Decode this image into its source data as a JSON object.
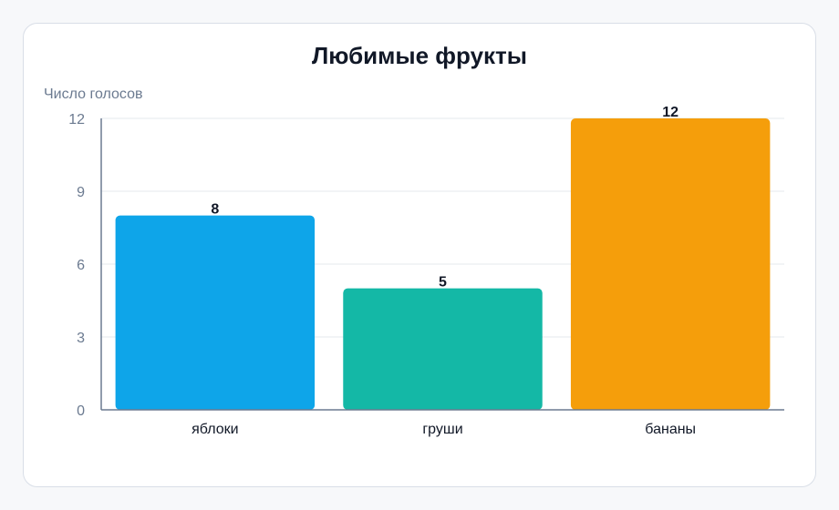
{
  "chart_data": {
    "type": "bar",
    "title": "Любимые фрукты",
    "ylabel": "Число голосов",
    "xlabel": "",
    "categories": [
      "яблоки",
      "груши",
      "бананы"
    ],
    "values": [
      8,
      5,
      12
    ],
    "colors": [
      "#0ea5e9",
      "#14b8a6",
      "#f59e0b"
    ],
    "ylim": [
      0,
      12
    ],
    "yticks": [
      0,
      3,
      6,
      9,
      12
    ],
    "grid": true,
    "legend": "none"
  }
}
